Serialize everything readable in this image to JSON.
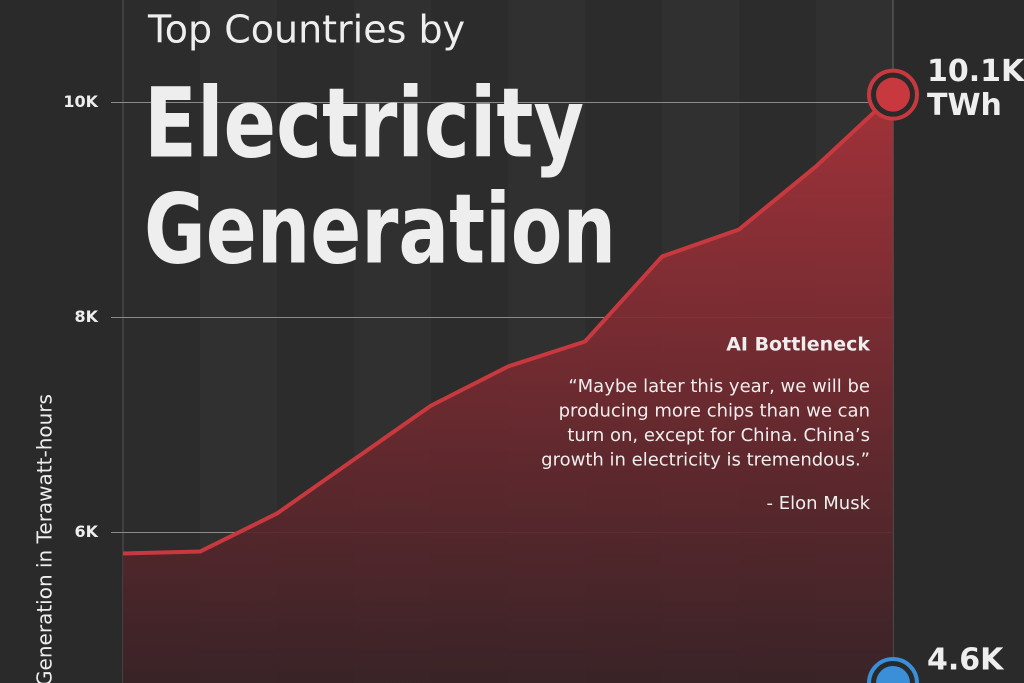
{
  "chart_data": {
    "type": "area",
    "title": [
      "Top Countries by",
      "Electricity",
      "Generation"
    ],
    "y_label": "Generation in Terawatt-hours",
    "ylim": [
      4600,
      10900
    ],
    "yticks": [
      {
        "value": 6000,
        "label": "6K"
      },
      {
        "value": 8000,
        "label": "8K"
      },
      {
        "value": 10000,
        "label": "10K"
      }
    ],
    "grid": true,
    "series": [
      {
        "color": "#c8393f",
        "values": [
          5805,
          5823,
          6177,
          6679,
          7180,
          7544,
          7777,
          8567,
          8819,
          9405,
          10073
        ],
        "value_labels": [
          null,
          null,
          null,
          null,
          null,
          null,
          null,
          null,
          null,
          null,
          "10.1K"
        ],
        "unit": "TWh"
      },
      {
        "color": "#3a8fd8",
        "values": [
          null,
          null,
          null,
          null,
          null,
          null,
          null,
          null,
          null,
          null,
          4600
        ],
        "value_labels": [
          null,
          null,
          null,
          null,
          null,
          null,
          null,
          null,
          null,
          null,
          "4.6K"
        ]
      }
    ],
    "annotation": {
      "title": "AI Bottleneck",
      "lines": [
        "“Maybe later this year, we will be",
        "producing more chips than we can",
        "turn on, except for China. China’s",
        "growth in electricity is tremendous.”"
      ],
      "source": "- Elon Musk"
    }
  }
}
